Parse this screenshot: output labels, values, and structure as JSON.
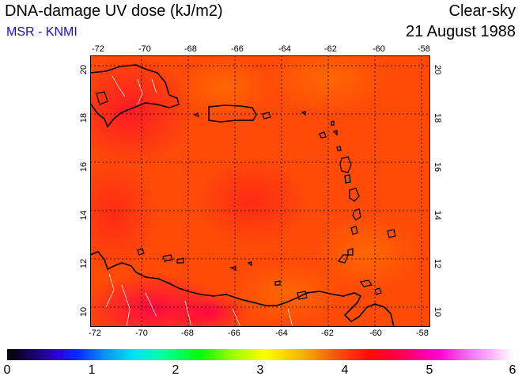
{
  "header": {
    "title": "DNA-damage UV dose (kJ/m2)",
    "subtitle": "MSR - KNMI",
    "condition": "Clear-sky",
    "date": "21 August 1988"
  },
  "map": {
    "lon_ticks": [
      "-72",
      "-70",
      "-68",
      "-66",
      "-64",
      "-62",
      "-60",
      "-58"
    ],
    "lat_ticks": [
      "20",
      "18",
      "16",
      "14",
      "12",
      "10"
    ],
    "lon_range": [
      -72,
      -58
    ],
    "lat_range": [
      9.6,
      20.4
    ],
    "gridlines": true,
    "region": "Caribbean Sea",
    "colors": {
      "base": "#ff4a08",
      "high": "#ff1a2a",
      "low": "#ff6a00",
      "coastline": "#000000",
      "borders": "#ffffff"
    }
  },
  "colorbar": {
    "ticks": [
      "0",
      "1",
      "2",
      "3",
      "4",
      "5",
      "6"
    ],
    "min": 0,
    "max": 6
  }
}
